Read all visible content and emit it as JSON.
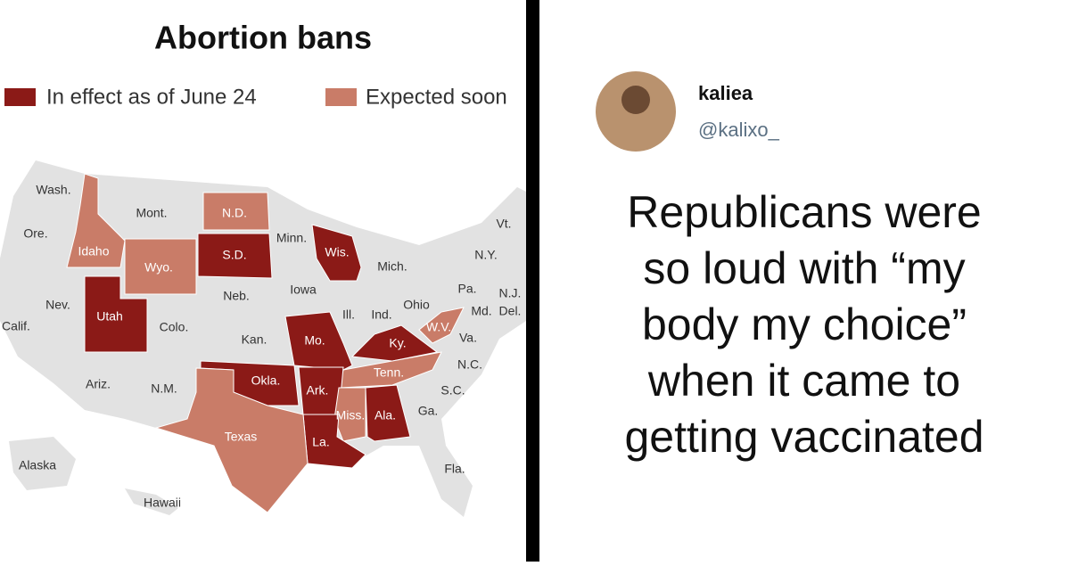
{
  "map": {
    "title": "Abortion bans",
    "legend": [
      {
        "label": "In effect as of June 24",
        "color": "#8b1a17"
      },
      {
        "label": "Expected soon",
        "color": "#c97c68"
      }
    ],
    "states": [
      "Wash.",
      "Mont.",
      "N.D.",
      "Ore.",
      "Idaho",
      "Wyo.",
      "S.D.",
      "Minn.",
      "Wis.",
      "Mich.",
      "N.Y.",
      "Vt.",
      "Iowa",
      "Neb.",
      "Nev.",
      "Utah",
      "Calif.",
      "Colo.",
      "Kan.",
      "Mo.",
      "Ill.",
      "Ind.",
      "Ohio",
      "Pa.",
      "N.J.",
      "Del.",
      "Md.",
      "W.V.",
      "Va.",
      "Ky.",
      "Tenn.",
      "N.C.",
      "Okla.",
      "Ark.",
      "S.C.",
      "Ariz.",
      "N.M.",
      "Ga.",
      "Ala.",
      "Miss.",
      "Texas",
      "La.",
      "Fla.",
      "Alaska",
      "Hawaii"
    ]
  },
  "tweet": {
    "name": "kaliea",
    "handle": "@kalixo_",
    "lines": [
      "Republicans were",
      "so loud with “my",
      "body my choice”",
      "when it came to",
      "getting vaccinated"
    ]
  }
}
